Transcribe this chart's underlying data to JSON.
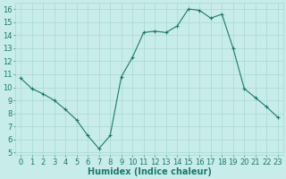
{
  "x": [
    0,
    1,
    2,
    3,
    4,
    5,
    6,
    7,
    8,
    9,
    10,
    11,
    12,
    13,
    14,
    15,
    16,
    17,
    18,
    19,
    20,
    21,
    22,
    23
  ],
  "y": [
    10.7,
    9.9,
    9.5,
    9.0,
    8.3,
    7.5,
    6.3,
    5.3,
    6.3,
    10.8,
    12.3,
    14.2,
    14.3,
    14.2,
    14.7,
    16.0,
    15.9,
    15.3,
    15.6,
    13.0,
    9.9,
    9.2,
    8.5,
    7.7
  ],
  "line_color": "#1a7a6e",
  "marker": "+",
  "bg_color": "#c8ece9",
  "grid_color": "#a8d8d4",
  "xlabel": "Humidex (Indice chaleur)",
  "xlim": [
    -0.5,
    23.5
  ],
  "ylim": [
    4.8,
    16.5
  ],
  "yticks": [
    5,
    6,
    7,
    8,
    9,
    10,
    11,
    12,
    13,
    14,
    15,
    16
  ],
  "xticks": [
    0,
    1,
    2,
    3,
    4,
    5,
    6,
    7,
    8,
    9,
    10,
    11,
    12,
    13,
    14,
    15,
    16,
    17,
    18,
    19,
    20,
    21,
    22,
    23
  ],
  "tick_color": "#1a7a6e",
  "font_color": "#1a7a6e",
  "xlabel_fontsize": 7,
  "tick_fontsize": 6
}
